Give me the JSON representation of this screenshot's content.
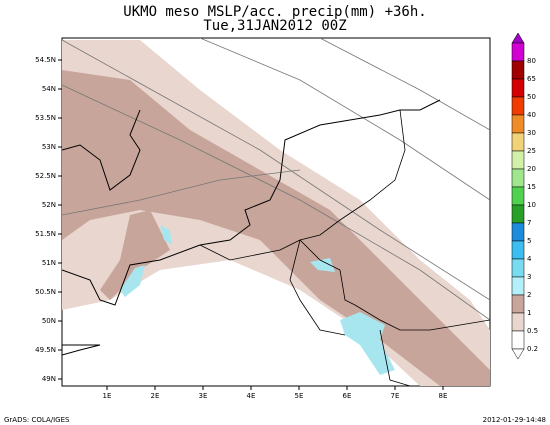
{
  "header": {
    "title": "UKMO meso MSLP/acc. precip(mm) +36h.",
    "subtitle": "Tue,31JAN2012 00Z"
  },
  "map": {
    "lat_labels": [
      "54.5N",
      "54N",
      "53.5N",
      "53N",
      "52.5N",
      "52N",
      "51.5N",
      "51N",
      "50.5N",
      "50N",
      "49.5N",
      "49N"
    ],
    "lon_labels": [
      "1E",
      "2E",
      "3E",
      "4E",
      "5E",
      "6E",
      "7E",
      "8E"
    ]
  },
  "colorbar": {
    "labels": [
      "80",
      "65",
      "50",
      "40",
      "30",
      "25",
      "20",
      "15",
      "10",
      "7",
      "5",
      "4",
      "3",
      "2",
      "1",
      "0.5",
      "0.2"
    ]
  },
  "footer": {
    "credit": "GrADS: COLA/IGES",
    "timestamp": "2012-01-29-14:48"
  }
}
